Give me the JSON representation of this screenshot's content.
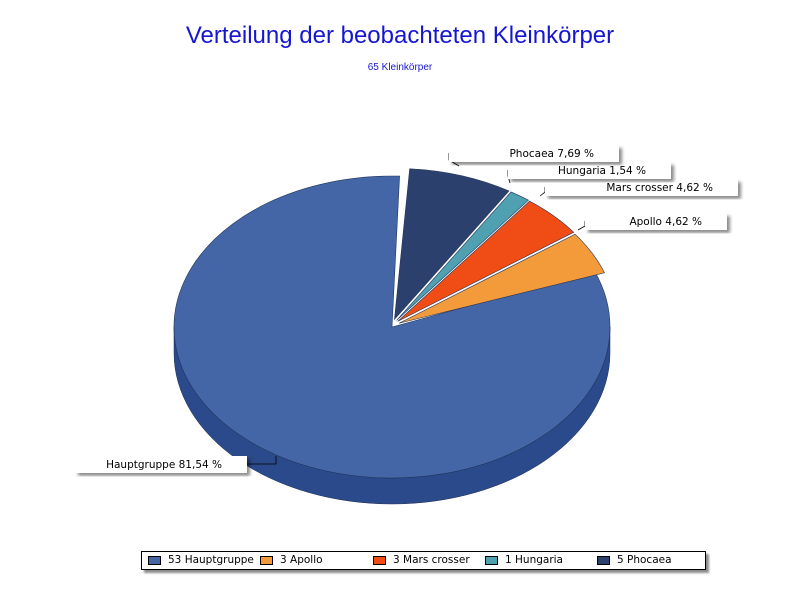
{
  "chart_data": {
    "type": "pie",
    "title": "Verteilung der beobachteten Kleinkörper",
    "subtitle": "65 Kleinkörper",
    "total": 65,
    "slices": [
      {
        "key": "hauptgruppe",
        "count": 53,
        "percent": 81.54,
        "label": "Hauptgruppe 81,54 %",
        "legend": "53 Hauptgruppe",
        "color": "#4466a6",
        "side": "#2b4a8c",
        "exploded": false
      },
      {
        "key": "apollo",
        "count": 3,
        "percent": 4.62,
        "label": "Apollo 4,62 %",
        "legend": "3 Apollo",
        "color": "#f39b3a",
        "side": "#c76e1a",
        "exploded": true
      },
      {
        "key": "mars-crosser",
        "count": 3,
        "percent": 4.62,
        "label": "Mars crosser 4,62 %",
        "legend": "3 Mars crosser",
        "color": "#f04d16",
        "side": "#b8380c",
        "exploded": true
      },
      {
        "key": "hungaria",
        "count": 1,
        "percent": 1.54,
        "label": "Hungaria 1,54 %",
        "legend": "1 Hungaria",
        "color": "#4fa0b0",
        "side": "#327a88",
        "exploded": true
      },
      {
        "key": "phocaea",
        "count": 5,
        "percent": 7.69,
        "label": "Phocaea 7,69 %",
        "legend": "5 Phocaea",
        "color": "#2b406d",
        "side": "#1c2c4f",
        "exploded": true
      }
    ],
    "legend_position": "bottom"
  }
}
